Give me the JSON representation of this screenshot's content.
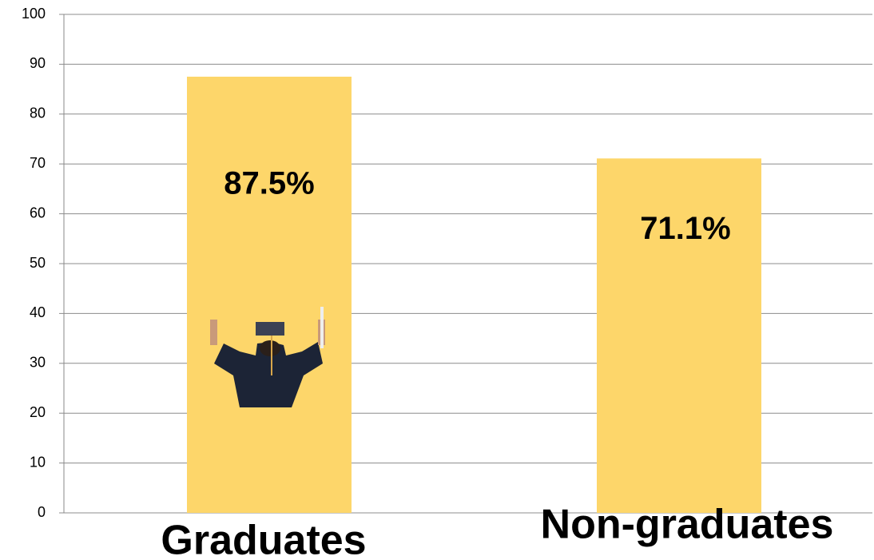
{
  "chart_data": {
    "type": "bar",
    "categories": [
      "Graduates",
      "Non-graduates"
    ],
    "values": [
      87.5,
      71.1
    ],
    "value_labels": [
      "87.5%",
      "71.1%"
    ],
    "color": "#fdd66a",
    "ylim": [
      0,
      100
    ],
    "yticks": [
      0,
      10,
      20,
      30,
      40,
      50,
      60,
      70,
      80,
      90,
      100
    ],
    "grid": true
  }
}
